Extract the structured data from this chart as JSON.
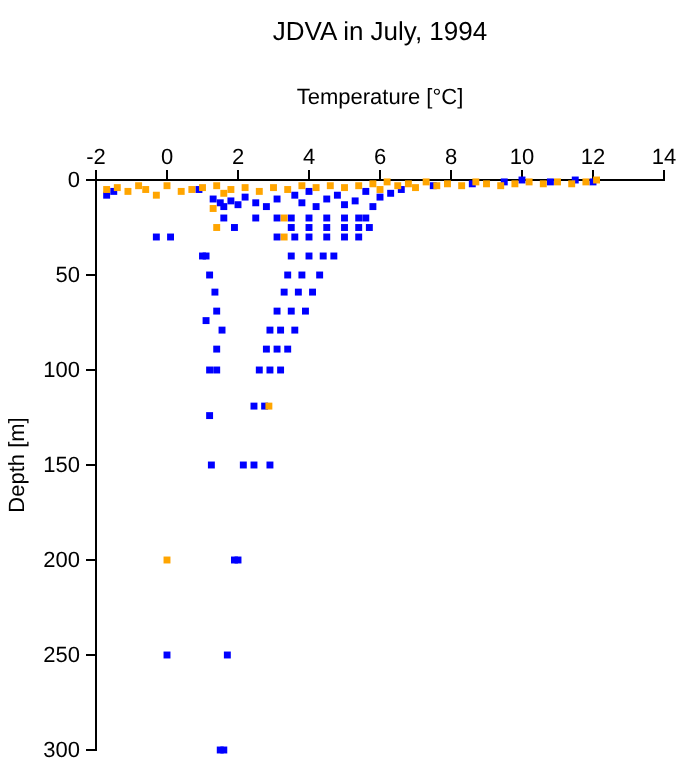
{
  "chart_data": {
    "type": "scatter",
    "title": "JDVA in July, 1994",
    "xlabel": "Temperature [°C]",
    "ylabel": "Depth [m]",
    "xlim": [
      -2,
      14
    ],
    "xticks": [
      -2,
      0,
      2,
      4,
      6,
      8,
      10,
      12,
      14
    ],
    "ylim": [
      300,
      0
    ],
    "yticks": [
      0,
      50,
      100,
      150,
      200,
      250,
      300
    ],
    "marker": "square",
    "grid": false,
    "series": [
      {
        "color": "#0000ff",
        "x": [
          -1.7,
          -1.5,
          0.9,
          1.3,
          1.5,
          1.6,
          1.8,
          2.0,
          2.2,
          2.5,
          2.8,
          3.1,
          3.6,
          3.8,
          4.0,
          4.2,
          4.5,
          4.8,
          5.0,
          5.3,
          5.6,
          5.8,
          6.0,
          6.3,
          6.6,
          7.5,
          8.6,
          9.5,
          10,
          10.8,
          11.5,
          12,
          1.6,
          2.5,
          3.1,
          3.5,
          4.0,
          4.5,
          5.0,
          5.4,
          5.6,
          1.9,
          3.5,
          4.0,
          4.5,
          5.0,
          5.4,
          5.7,
          -0.3,
          0.1,
          3.1,
          3.6,
          4.0,
          4.5,
          5.0,
          5.4,
          1.0,
          1.1,
          3.5,
          4.0,
          4.4,
          4.7,
          1.2,
          3.4,
          3.8,
          4.3,
          1.35,
          3.3,
          3.7,
          4.1,
          1.4,
          3.1,
          3.5,
          3.9,
          1.1,
          1.55,
          2.9,
          3.2,
          3.6,
          1.4,
          2.8,
          3.1,
          3.4,
          1.2,
          1.4,
          2.6,
          2.9,
          3.2,
          2.45,
          2.75,
          1.2,
          1.25,
          2.15,
          2.45,
          2.9,
          1.9,
          2.0,
          0.0,
          1.7,
          1.5,
          1.6
        ],
        "values": [
          8,
          6,
          5,
          10,
          12,
          14,
          11,
          13,
          9,
          12,
          14,
          10,
          8,
          12,
          6,
          14,
          10,
          8,
          13,
          11,
          6,
          14,
          9,
          7,
          5,
          3,
          2,
          1,
          0,
          1,
          0,
          1,
          20,
          20,
          20,
          20,
          20,
          20,
          20,
          20,
          20,
          25,
          25,
          25,
          25,
          25,
          25,
          25,
          30,
          30,
          30,
          30,
          30,
          30,
          30,
          30,
          40,
          40,
          40,
          40,
          40,
          40,
          50,
          50,
          50,
          50,
          59,
          59,
          59,
          59,
          69,
          69,
          69,
          69,
          74,
          79,
          79,
          79,
          79,
          89,
          89,
          89,
          89,
          100,
          100,
          100,
          100,
          100,
          119,
          119,
          124,
          150,
          150,
          150,
          150,
          200,
          200,
          250,
          250,
          300,
          300
        ]
      },
      {
        "color": "#ffa500",
        "x": [
          -1.7,
          -1.4,
          -1.1,
          -0.8,
          -0.6,
          -0.3,
          0.0,
          0.4,
          0.7,
          1.0,
          1.4,
          1.6,
          1.8,
          2.2,
          2.6,
          3.0,
          3.4,
          3.8,
          4.2,
          4.6,
          5.0,
          5.4,
          5.8,
          6.0,
          6.2,
          6.5,
          6.8,
          7.0,
          7.3,
          7.6,
          7.9,
          8.3,
          8.7,
          9.0,
          9.4,
          9.8,
          10.2,
          10.6,
          11.0,
          11.4,
          11.8,
          12.1,
          1.3,
          1.4,
          3.3,
          3.3,
          2.87,
          0.0
        ],
        "values": [
          5,
          4,
          6,
          3,
          5,
          8,
          3,
          6,
          5,
          4,
          3,
          7,
          5,
          4,
          6,
          4,
          5,
          3,
          4,
          3,
          4,
          3,
          2,
          5,
          1,
          3,
          2,
          4,
          1,
          3,
          2,
          3,
          1,
          2,
          3,
          2,
          1,
          2,
          1,
          2,
          1,
          0,
          15,
          25,
          20,
          30,
          119,
          200
        ]
      }
    ]
  }
}
